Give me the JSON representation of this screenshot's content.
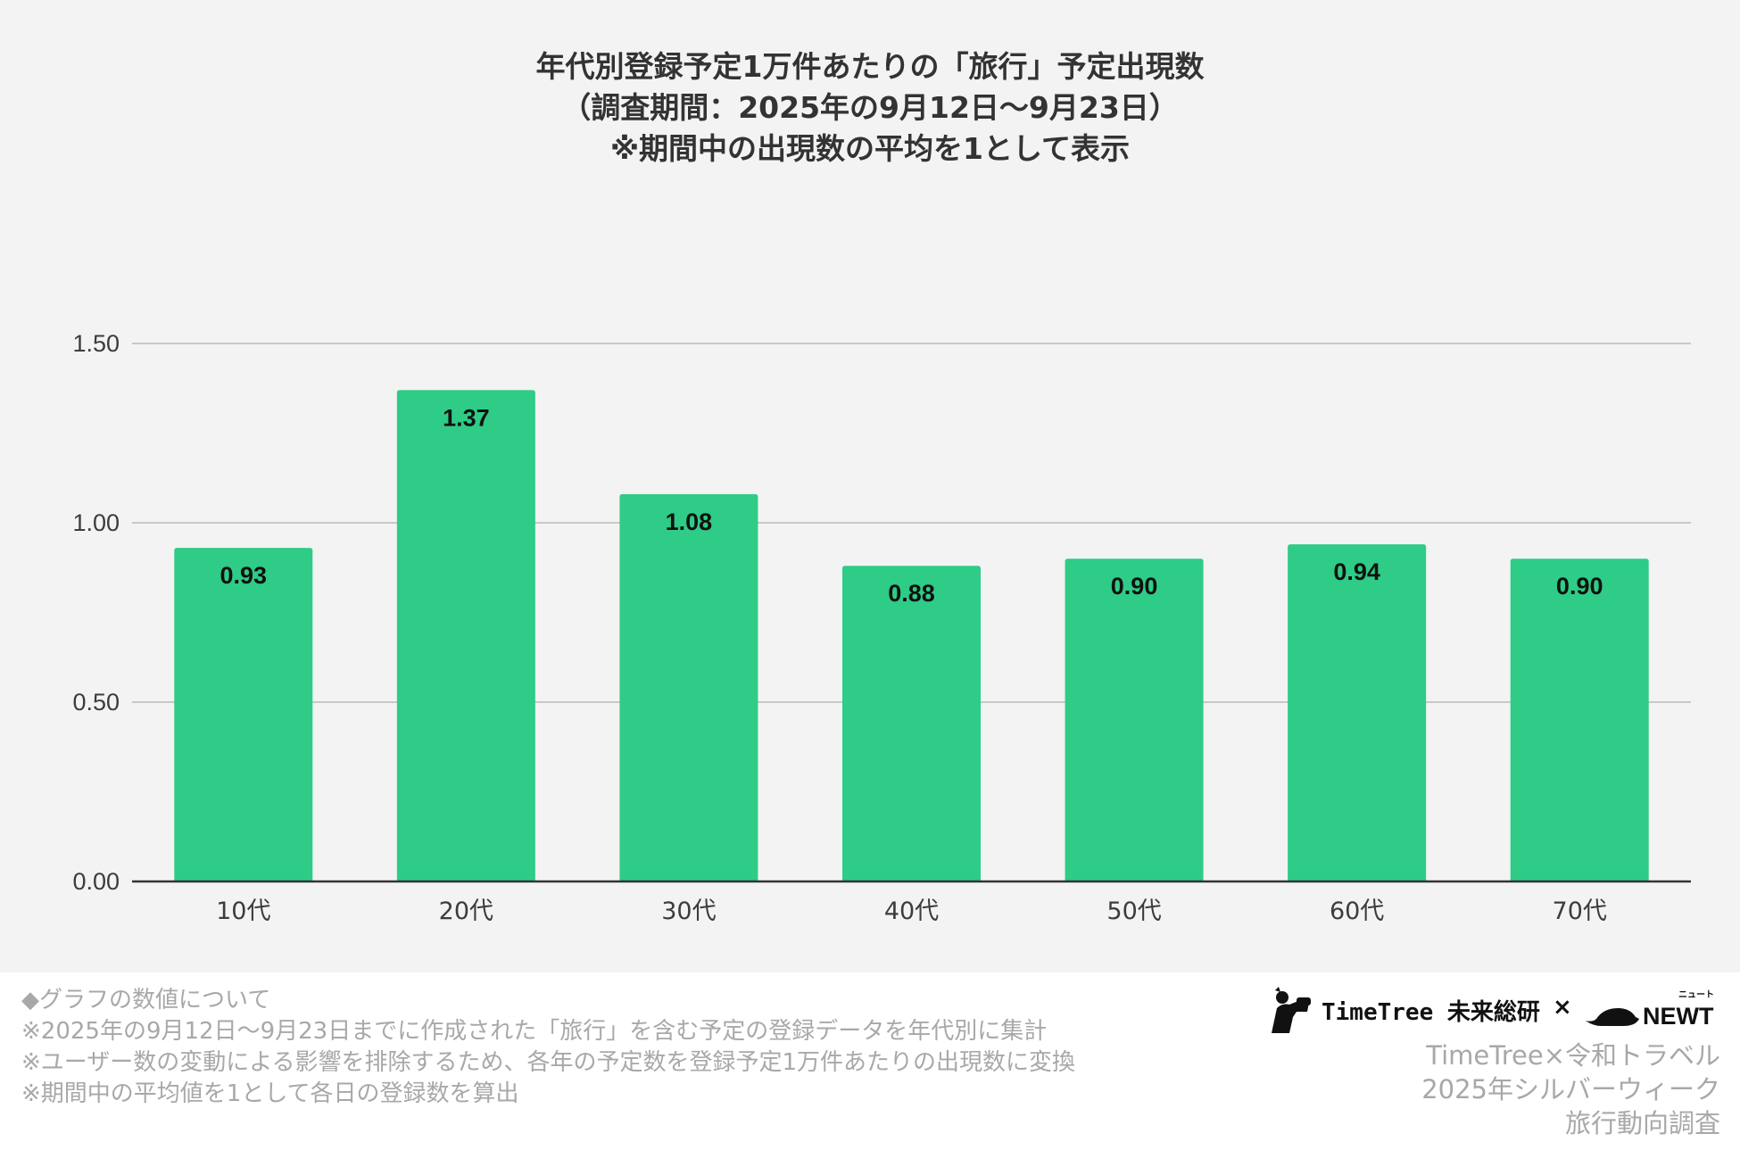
{
  "chart_data": {
    "type": "bar",
    "title": [
      "年代別登録予定1万件あたりの「旅行」予定出現数",
      "（調査期間：2025年の9月12日〜9月23日）",
      "※期間中の出現数の平均を1として表示"
    ],
    "categories": [
      "10代",
      "20代",
      "30代",
      "40代",
      "50代",
      "60代",
      "70代"
    ],
    "values": [
      0.93,
      1.37,
      1.08,
      0.88,
      0.9,
      0.94,
      0.9
    ],
    "data_labels": [
      "0.93",
      "1.37",
      "1.08",
      "0.88",
      "0.90",
      "0.94",
      "0.90"
    ],
    "y_ticks": [
      0,
      0.5,
      1.0,
      1.5
    ],
    "y_tick_labels": [
      "0.00",
      "0.50",
      "1.00",
      "1.50"
    ],
    "ylim": [
      0,
      1.5
    ],
    "xlabel": "",
    "ylabel": "",
    "grid": true,
    "legend": "none",
    "colors": {
      "bar": "#2ecc87",
      "grid": "#c8c8c8",
      "axis": "#333333"
    }
  },
  "notes": {
    "lines": [
      "◆グラフの数値について",
      "※2025年の9月12日〜9月23日までに作成された「旅行」を含む予定の登録データを年代別に集計",
      "※ユーザー数の変動による影響を排除するため、各年の予定数を登録予定1万件あたりの出現数に変換",
      "※期間中の平均値を1として各日の登録数を算出"
    ]
  },
  "brand": {
    "name": "TimeTree 未来総研",
    "times": "×",
    "newt": "NEWT",
    "newt_ruby": "ニュート",
    "icons": [
      "binoculars-person-icon",
      "turtle-icon"
    ]
  },
  "credit": {
    "lines": [
      "TimeTree×令和トラベル",
      "2025年シルバーウィーク",
      "旅行動向調査"
    ]
  }
}
